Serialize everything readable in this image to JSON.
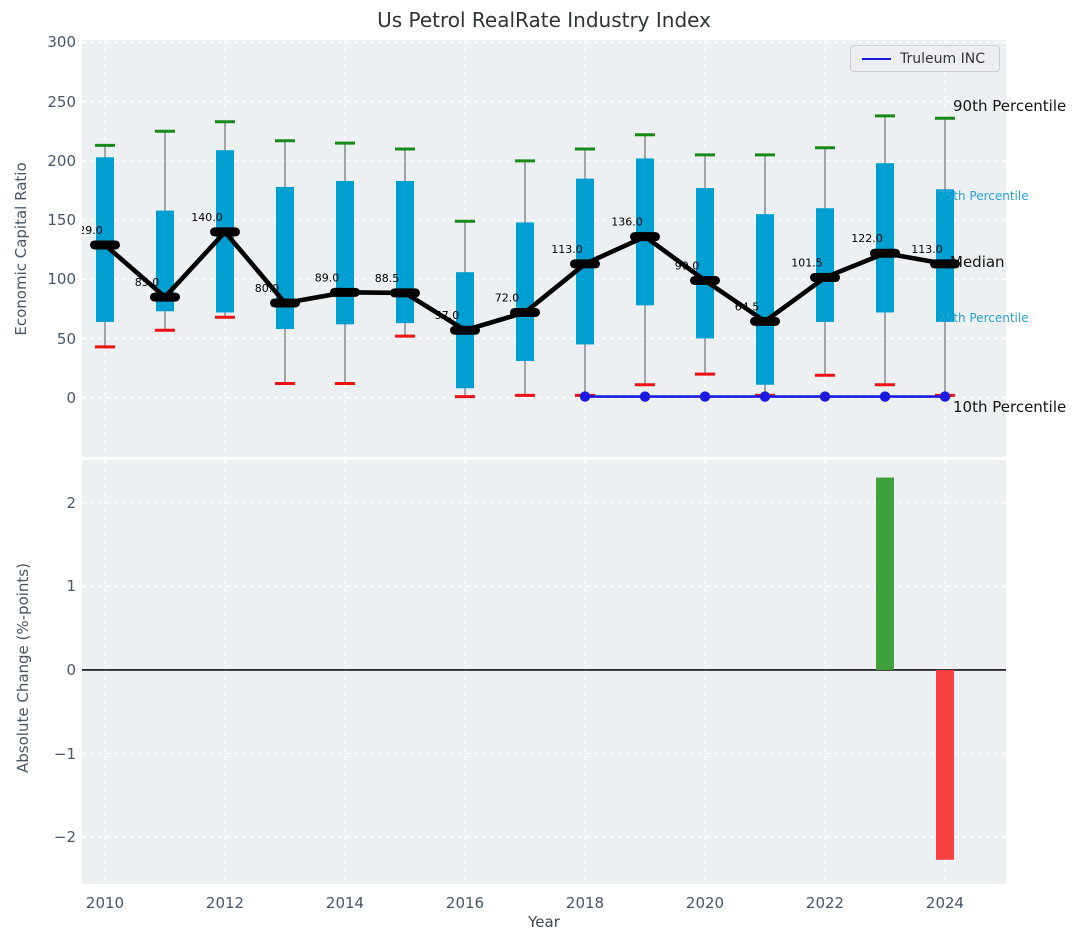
{
  "title": "Us Petrol RealRate Industry Index",
  "chart_data": [
    {
      "type": "boxplot",
      "title": "Us Petrol RealRate Industry Index",
      "ylabel": "Economic Capital Ratio",
      "ylim": [
        -50,
        302
      ],
      "yticks": [
        0,
        50,
        100,
        150,
        200,
        250,
        300
      ],
      "grid": true,
      "legend_position": "upper right",
      "years": [
        2010,
        2011,
        2012,
        2013,
        2014,
        2015,
        2016,
        2017,
        2018,
        2019,
        2020,
        2021,
        2022,
        2023,
        2024
      ],
      "percentiles": {
        "p90": [
          213,
          225,
          233,
          217,
          215,
          210,
          149,
          200,
          210,
          222,
          205,
          205,
          211,
          238,
          236
        ],
        "p75": [
          203,
          158,
          209,
          178,
          183,
          183,
          106,
          148,
          185,
          202,
          177,
          155,
          160,
          198,
          176
        ],
        "median": [
          129,
          85,
          140,
          80,
          89,
          88.5,
          57,
          72,
          113,
          136,
          99,
          64.5,
          101.5,
          122,
          113
        ],
        "p25": [
          64,
          73,
          72,
          58,
          62,
          63,
          8,
          31,
          45,
          78,
          50,
          11,
          64,
          72,
          64
        ],
        "p10": [
          43,
          57,
          68,
          12,
          12,
          52,
          1,
          2,
          2,
          11,
          20,
          2,
          19,
          11,
          2
        ]
      },
      "median_labels": [
        "129.0",
        "85.0",
        "140.0",
        "80.0",
        "89.0",
        "88.5",
        "57.0",
        "72.0",
        "113.0",
        "136.0",
        "99.0",
        "64.5",
        "101.5",
        "122.0",
        "113.0"
      ],
      "truleum": {
        "name": "Truleum INC",
        "years": [
          2018,
          2019,
          2020,
          2021,
          2022,
          2023,
          2024
        ],
        "values": [
          1,
          1,
          1,
          1,
          1,
          1,
          1
        ]
      },
      "annotations": {
        "p90": "90th Percentile",
        "p75": "75th Percentile",
        "median": "Median",
        "p25": "25th Percentile",
        "p10": "10th Percentile"
      }
    },
    {
      "type": "bar",
      "ylabel": "Absolute Change (%-points)",
      "xlabel": "Year",
      "ylim": [
        -2.56,
        2.51
      ],
      "yticks": [
        2,
        1,
        0,
        -1,
        -2
      ],
      "xticks": [
        2010,
        2012,
        2014,
        2016,
        2018,
        2020,
        2022,
        2024
      ],
      "bars": [
        {
          "year": 2023,
          "value": 2.3
        },
        {
          "year": 2024,
          "value": -2.27
        }
      ],
      "zero_line": true
    }
  ],
  "colors": {
    "box_fill": "#009fd2",
    "p90_cap": "#178a17",
    "p10_cap": "#ee1111",
    "whisker": "#7a7a7a",
    "median_line": "#000000",
    "truleum_line": "#1b1be0",
    "bar_up": "#3fa13c",
    "bar_down": "#f94040",
    "panel_bg": "#ecf0f2",
    "grid": "#ffffff",
    "tick_text": "#46566b",
    "percentile_label_blue": "#2aa2d4"
  }
}
